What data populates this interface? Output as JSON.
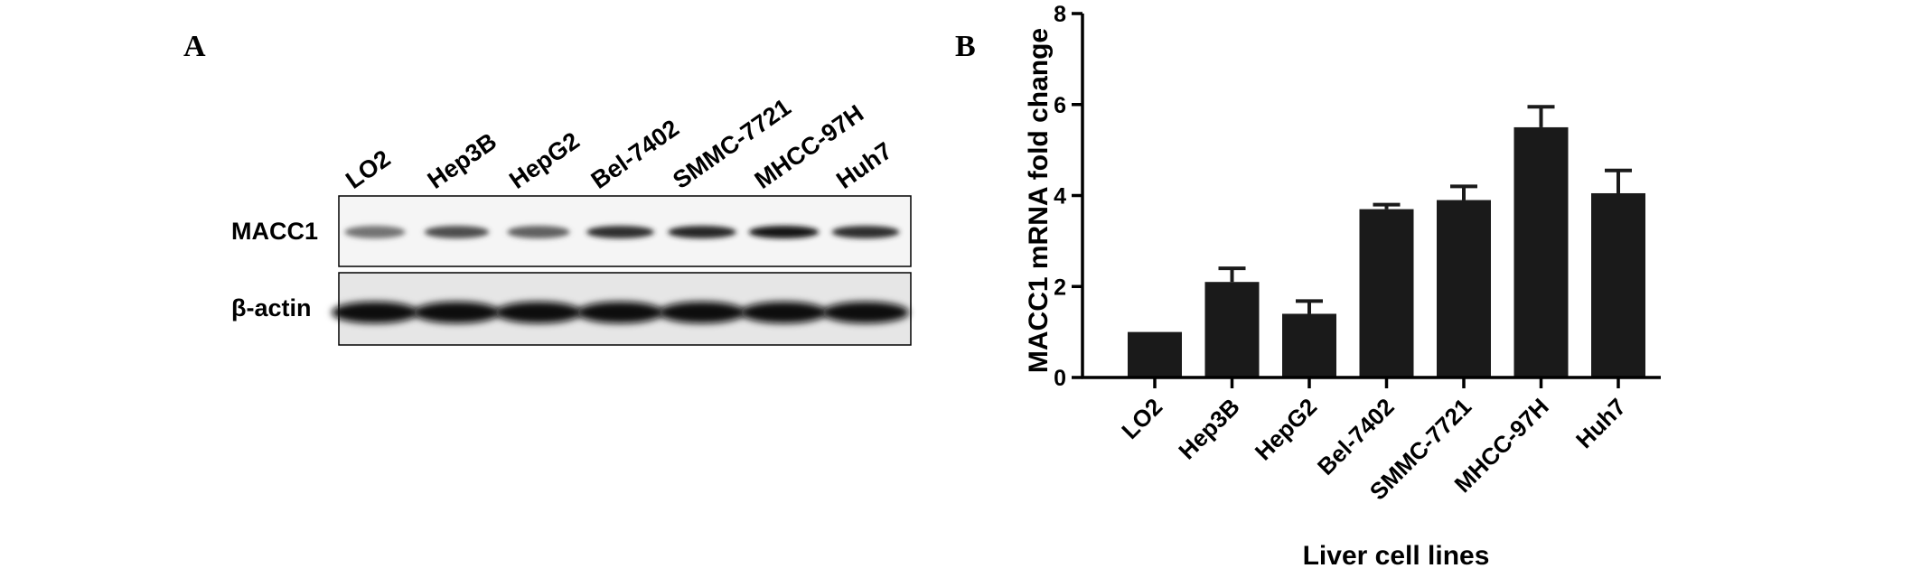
{
  "panel_a": {
    "letter": "A",
    "lanes": [
      "LO2",
      "Hep3B",
      "HepG2",
      "Bel-7402",
      "SMMC-7721",
      "MHCC-97H",
      "Huh7"
    ],
    "blots": [
      {
        "label": "MACC1",
        "band_intensity": [
          0.55,
          0.7,
          0.62,
          0.82,
          0.85,
          0.92,
          0.82
        ]
      },
      {
        "label": "β-actin",
        "band_intensity": [
          0.95,
          0.95,
          0.95,
          0.95,
          0.95,
          0.95,
          0.95
        ]
      }
    ]
  },
  "panel_b": {
    "letter": "B"
  },
  "chart_data": {
    "type": "bar",
    "categories": [
      "LO2",
      "Hep3B",
      "HepG2",
      "Bel-7402",
      "SMMC-7721",
      "MHCC-97H",
      "Huh7"
    ],
    "values": [
      1.0,
      2.1,
      1.4,
      3.7,
      3.9,
      5.5,
      4.05
    ],
    "errors": [
      0.0,
      0.3,
      0.28,
      0.1,
      0.3,
      0.45,
      0.5
    ],
    "title": "",
    "xlabel": "Liver cell lines",
    "ylabel": "MACC1 mRNA fold change",
    "ylim": [
      0,
      8
    ],
    "yticks": [
      "0",
      "2",
      "4",
      "6",
      "8"
    ],
    "bar_color": "#1a1a1a",
    "grid": false,
    "legend": "none"
  }
}
